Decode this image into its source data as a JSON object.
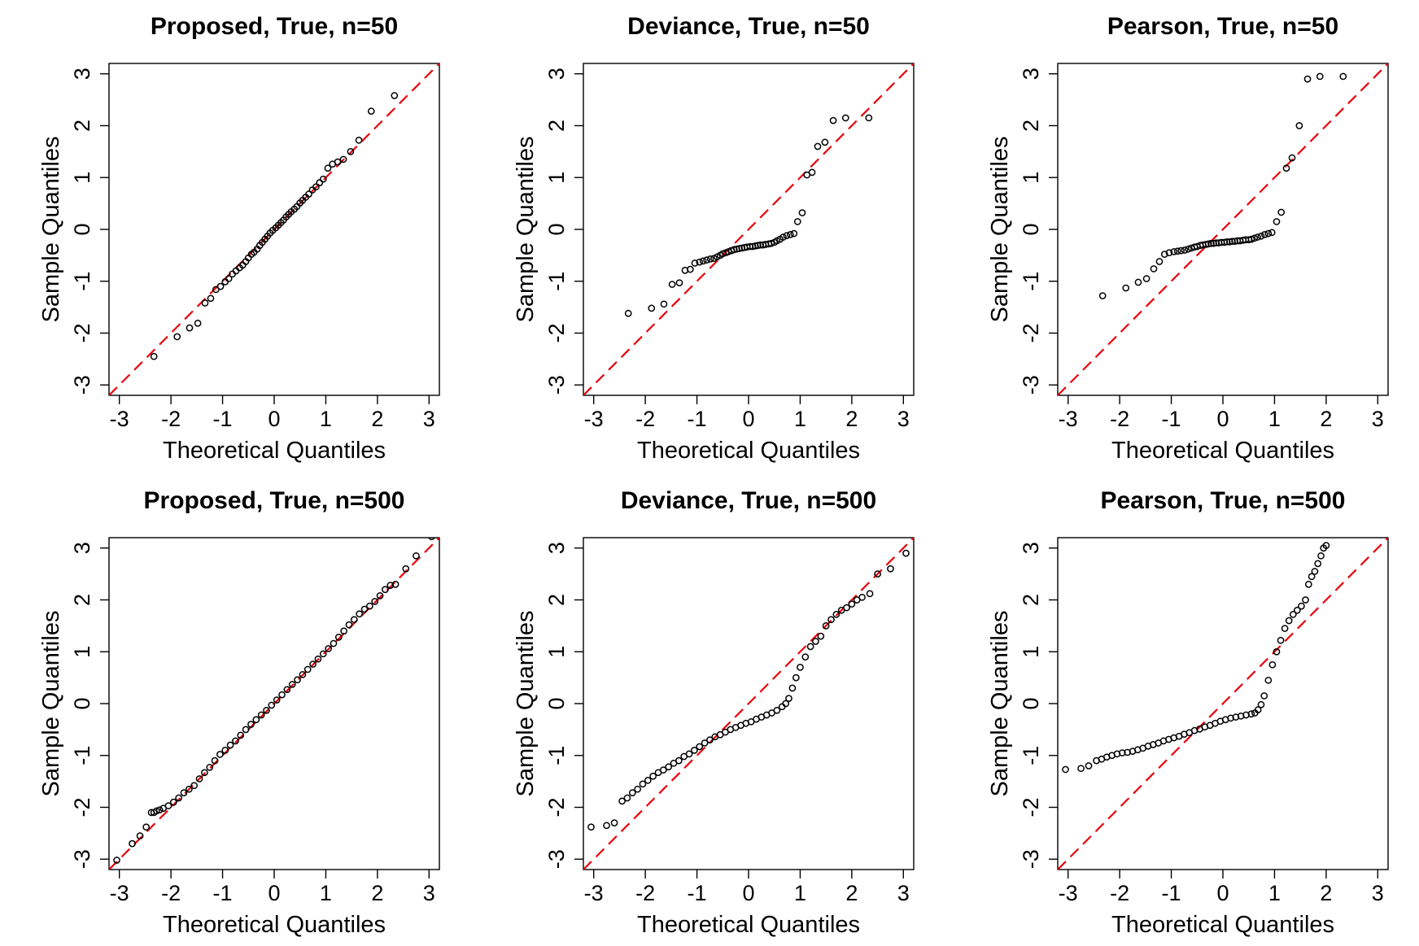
{
  "chart_data": [
    {
      "type": "scatter",
      "title": "Proposed, True, n=50",
      "xlabel": "Theoretical Quantiles",
      "ylabel": "Sample Quantiles",
      "xlim": [
        -3.2,
        3.2
      ],
      "ylim": [
        -3.2,
        3.2
      ],
      "xticks": [
        "-3",
        "-2",
        "-1",
        "0",
        "1",
        "2",
        "3"
      ],
      "yticks": [
        "-3",
        "-2",
        "-1",
        "0",
        "1",
        "2",
        "3"
      ],
      "reference_line": {
        "slope": 1,
        "intercept": 0,
        "color": "#e8000b",
        "style": "dashed"
      },
      "x": [
        -2.33,
        -1.88,
        -1.64,
        -1.48,
        -1.34,
        -1.23,
        -1.13,
        -1.04,
        -0.95,
        -0.88,
        -0.81,
        -0.74,
        -0.67,
        -0.61,
        -0.55,
        -0.5,
        -0.44,
        -0.39,
        -0.33,
        -0.28,
        -0.23,
        -0.18,
        -0.13,
        -0.08,
        -0.03,
        0.03,
        0.08,
        0.13,
        0.18,
        0.23,
        0.28,
        0.33,
        0.39,
        0.44,
        0.5,
        0.55,
        0.61,
        0.67,
        0.74,
        0.81,
        0.88,
        0.95,
        1.04,
        1.13,
        1.23,
        1.34,
        1.48,
        1.64,
        1.88,
        2.33
      ],
      "y": [
        -2.45,
        -2.07,
        -1.9,
        -1.81,
        -1.42,
        -1.33,
        -1.16,
        -1.1,
        -1.01,
        -0.95,
        -0.86,
        -0.8,
        -0.74,
        -0.69,
        -0.62,
        -0.55,
        -0.48,
        -0.44,
        -0.38,
        -0.31,
        -0.25,
        -0.19,
        -0.13,
        -0.07,
        -0.02,
        0.03,
        0.08,
        0.13,
        0.18,
        0.24,
        0.29,
        0.34,
        0.39,
        0.44,
        0.51,
        0.56,
        0.62,
        0.68,
        0.76,
        0.82,
        0.9,
        0.97,
        1.18,
        1.26,
        1.3,
        1.35,
        1.5,
        1.72,
        2.28,
        2.58
      ]
    },
    {
      "type": "scatter",
      "title": "Deviance, True, n=50",
      "xlabel": "Theoretical Quantiles",
      "ylabel": "Sample Quantiles",
      "xlim": [
        -3.2,
        3.2
      ],
      "ylim": [
        -3.2,
        3.2
      ],
      "xticks": [
        "-3",
        "-2",
        "-1",
        "0",
        "1",
        "2",
        "3"
      ],
      "yticks": [
        "-3",
        "-2",
        "-1",
        "0",
        "1",
        "2",
        "3"
      ],
      "reference_line": {
        "slope": 1,
        "intercept": 0,
        "color": "#e8000b",
        "style": "dashed"
      },
      "x": [
        -2.33,
        -1.88,
        -1.64,
        -1.48,
        -1.34,
        -1.23,
        -1.13,
        -1.04,
        -0.95,
        -0.88,
        -0.81,
        -0.74,
        -0.67,
        -0.61,
        -0.55,
        -0.5,
        -0.44,
        -0.39,
        -0.33,
        -0.28,
        -0.23,
        -0.18,
        -0.13,
        -0.08,
        -0.03,
        0.03,
        0.08,
        0.13,
        0.18,
        0.23,
        0.28,
        0.33,
        0.39,
        0.44,
        0.5,
        0.55,
        0.61,
        0.67,
        0.74,
        0.81,
        0.88,
        0.95,
        1.04,
        1.13,
        1.23,
        1.34,
        1.48,
        1.64,
        1.88,
        2.33
      ],
      "y": [
        -1.62,
        -1.52,
        -1.44,
        -1.06,
        -1.03,
        -0.79,
        -0.77,
        -0.65,
        -0.63,
        -0.61,
        -0.59,
        -0.57,
        -0.56,
        -0.53,
        -0.5,
        -0.47,
        -0.45,
        -0.43,
        -0.41,
        -0.39,
        -0.38,
        -0.37,
        -0.36,
        -0.35,
        -0.34,
        -0.33,
        -0.33,
        -0.32,
        -0.31,
        -0.3,
        -0.3,
        -0.29,
        -0.28,
        -0.27,
        -0.25,
        -0.22,
        -0.19,
        -0.15,
        -0.12,
        -0.1,
        -0.08,
        0.15,
        0.32,
        1.05,
        1.1,
        1.6,
        1.68,
        2.1,
        2.15,
        2.15
      ]
    },
    {
      "type": "scatter",
      "title": "Pearson, True, n=50",
      "xlabel": "Theoretical Quantiles",
      "ylabel": "Sample Quantiles",
      "xlim": [
        -3.2,
        3.2
      ],
      "ylim": [
        -3.2,
        3.2
      ],
      "xticks": [
        "-3",
        "-2",
        "-1",
        "0",
        "1",
        "2",
        "3"
      ],
      "yticks": [
        "-3",
        "-2",
        "-1",
        "0",
        "1",
        "2",
        "3"
      ],
      "reference_line": {
        "slope": 1,
        "intercept": 0,
        "color": "#e8000b",
        "style": "dashed"
      },
      "x": [
        -2.33,
        -1.88,
        -1.64,
        -1.48,
        -1.34,
        -1.23,
        -1.13,
        -1.04,
        -0.95,
        -0.88,
        -0.81,
        -0.74,
        -0.67,
        -0.61,
        -0.55,
        -0.5,
        -0.44,
        -0.39,
        -0.33,
        -0.28,
        -0.23,
        -0.18,
        -0.13,
        -0.08,
        -0.03,
        0.03,
        0.08,
        0.13,
        0.18,
        0.23,
        0.28,
        0.33,
        0.39,
        0.44,
        0.5,
        0.55,
        0.61,
        0.67,
        0.74,
        0.81,
        0.88,
        0.95,
        1.04,
        1.13,
        1.23,
        1.34,
        1.48,
        1.64,
        1.88,
        2.33
      ],
      "y": [
        -1.28,
        -1.13,
        -1.02,
        -0.95,
        -0.76,
        -0.62,
        -0.48,
        -0.45,
        -0.43,
        -0.42,
        -0.41,
        -0.4,
        -0.38,
        -0.36,
        -0.34,
        -0.33,
        -0.31,
        -0.3,
        -0.29,
        -0.28,
        -0.27,
        -0.27,
        -0.26,
        -0.26,
        -0.25,
        -0.25,
        -0.24,
        -0.24,
        -0.23,
        -0.23,
        -0.22,
        -0.22,
        -0.21,
        -0.2,
        -0.2,
        -0.19,
        -0.17,
        -0.15,
        -0.13,
        -0.1,
        -0.08,
        -0.06,
        0.15,
        0.33,
        1.18,
        1.38,
        2.0,
        2.9,
        2.95,
        2.95
      ]
    },
    {
      "type": "scatter",
      "title": "Proposed, True, n=500",
      "xlabel": "Theoretical Quantiles",
      "ylabel": "Sample Quantiles",
      "xlim": [
        -3.2,
        3.2
      ],
      "ylim": [
        -3.2,
        3.2
      ],
      "xticks": [
        "-3",
        "-2",
        "-1",
        "0",
        "1",
        "2",
        "3"
      ],
      "yticks": [
        "-3",
        "-2",
        "-1",
        "0",
        "1",
        "2",
        "3"
      ],
      "reference_line": {
        "slope": 1,
        "intercept": 0,
        "color": "#e8000b",
        "style": "dashed"
      },
      "x": [
        -3.05,
        -2.75,
        -2.6,
        -2.48,
        -2.38,
        -2.33,
        -2.28,
        -2.22,
        -2.15,
        -2.05,
        -1.95,
        -1.85,
        -1.75,
        -1.65,
        -1.55,
        -1.45,
        -1.35,
        -1.25,
        -1.15,
        -1.05,
        -0.95,
        -0.85,
        -0.75,
        -0.65,
        -0.55,
        -0.45,
        -0.35,
        -0.25,
        -0.15,
        -0.05,
        0.05,
        0.15,
        0.25,
        0.35,
        0.45,
        0.55,
        0.65,
        0.75,
        0.85,
        0.95,
        1.05,
        1.15,
        1.25,
        1.35,
        1.45,
        1.55,
        1.65,
        1.75,
        1.85,
        1.95,
        2.05,
        2.15,
        2.25,
        2.35,
        2.55,
        2.75,
        3.05
      ],
      "y": [
        -3.02,
        -2.7,
        -2.55,
        -2.38,
        -2.1,
        -2.1,
        -2.07,
        -2.05,
        -2.02,
        -1.97,
        -1.9,
        -1.82,
        -1.72,
        -1.65,
        -1.58,
        -1.45,
        -1.33,
        -1.23,
        -1.1,
        -0.98,
        -0.9,
        -0.8,
        -0.72,
        -0.61,
        -0.5,
        -0.4,
        -0.31,
        -0.22,
        -0.13,
        -0.03,
        0.07,
        0.17,
        0.27,
        0.37,
        0.46,
        0.56,
        0.66,
        0.76,
        0.86,
        0.96,
        1.06,
        1.16,
        1.28,
        1.4,
        1.52,
        1.62,
        1.73,
        1.82,
        1.88,
        1.97,
        2.08,
        2.2,
        2.28,
        2.3,
        2.6,
        2.85,
        3.22
      ]
    },
    {
      "type": "scatter",
      "title": "Deviance, True, n=500",
      "xlabel": "Theoretical Quantiles",
      "ylabel": "Sample Quantiles",
      "xlim": [
        -3.2,
        3.2
      ],
      "ylim": [
        -3.2,
        3.2
      ],
      "xticks": [
        "-3",
        "-2",
        "-1",
        "0",
        "1",
        "2",
        "3"
      ],
      "yticks": [
        "-3",
        "-2",
        "-1",
        "0",
        "1",
        "2",
        "3"
      ],
      "reference_line": {
        "slope": 1,
        "intercept": 0,
        "color": "#e8000b",
        "style": "dashed"
      },
      "x": [
        -3.05,
        -2.75,
        -2.6,
        -2.45,
        -2.35,
        -2.25,
        -2.15,
        -2.05,
        -1.95,
        -1.85,
        -1.75,
        -1.65,
        -1.55,
        -1.45,
        -1.35,
        -1.25,
        -1.15,
        -1.05,
        -0.95,
        -0.85,
        -0.75,
        -0.65,
        -0.55,
        -0.45,
        -0.35,
        -0.25,
        -0.15,
        -0.05,
        0.05,
        0.15,
        0.25,
        0.35,
        0.45,
        0.55,
        0.65,
        0.72,
        0.78,
        0.85,
        0.92,
        1.0,
        1.1,
        1.2,
        1.3,
        1.4,
        1.5,
        1.6,
        1.7,
        1.8,
        1.9,
        2.0,
        2.1,
        2.2,
        2.35,
        2.5,
        2.75,
        3.05
      ],
      "y": [
        -2.38,
        -2.35,
        -2.3,
        -1.88,
        -1.82,
        -1.72,
        -1.65,
        -1.55,
        -1.48,
        -1.4,
        -1.33,
        -1.28,
        -1.22,
        -1.15,
        -1.1,
        -1.02,
        -0.97,
        -0.9,
        -0.83,
        -0.76,
        -0.7,
        -0.64,
        -0.6,
        -0.55,
        -0.5,
        -0.46,
        -0.42,
        -0.38,
        -0.35,
        -0.3,
        -0.26,
        -0.22,
        -0.18,
        -0.13,
        -0.06,
        0.0,
        0.1,
        0.3,
        0.5,
        0.7,
        0.9,
        1.1,
        1.2,
        1.3,
        1.5,
        1.62,
        1.72,
        1.8,
        1.85,
        1.92,
        2.0,
        2.05,
        2.12,
        2.5,
        2.6,
        2.9
      ]
    },
    {
      "type": "scatter",
      "title": "Pearson, True, n=500",
      "xlabel": "Theoretical Quantiles",
      "ylabel": "Sample Quantiles",
      "xlim": [
        -3.2,
        3.2
      ],
      "ylim": [
        -3.2,
        3.2
      ],
      "xticks": [
        "-3",
        "-2",
        "-1",
        "0",
        "1",
        "2",
        "3"
      ],
      "yticks": [
        "-3",
        "-2",
        "-1",
        "0",
        "1",
        "2",
        "3"
      ],
      "reference_line": {
        "slope": 1,
        "intercept": 0,
        "color": "#e8000b",
        "style": "dashed"
      },
      "x": [
        -3.05,
        -2.75,
        -2.6,
        -2.45,
        -2.35,
        -2.25,
        -2.15,
        -2.05,
        -1.95,
        -1.85,
        -1.75,
        -1.65,
        -1.55,
        -1.45,
        -1.35,
        -1.25,
        -1.15,
        -1.05,
        -0.95,
        -0.85,
        -0.75,
        -0.65,
        -0.55,
        -0.45,
        -0.35,
        -0.25,
        -0.15,
        -0.05,
        0.05,
        0.15,
        0.25,
        0.35,
        0.45,
        0.55,
        0.62,
        0.68,
        0.74,
        0.8,
        0.88,
        0.96,
        1.04,
        1.12,
        1.2,
        1.28,
        1.36,
        1.44,
        1.52,
        1.6,
        1.66,
        1.72,
        1.78,
        1.84,
        1.9,
        1.95,
        2.0
      ],
      "y": [
        -1.27,
        -1.25,
        -1.2,
        -1.1,
        -1.07,
        -1.03,
        -1.0,
        -0.97,
        -0.95,
        -0.94,
        -0.92,
        -0.89,
        -0.86,
        -0.82,
        -0.79,
        -0.76,
        -0.72,
        -0.69,
        -0.66,
        -0.63,
        -0.59,
        -0.56,
        -0.52,
        -0.49,
        -0.45,
        -0.42,
        -0.38,
        -0.34,
        -0.31,
        -0.28,
        -0.26,
        -0.24,
        -0.22,
        -0.2,
        -0.18,
        -0.12,
        -0.02,
        0.15,
        0.45,
        0.75,
        1.0,
        1.22,
        1.45,
        1.6,
        1.72,
        1.8,
        1.88,
        2.0,
        2.3,
        2.45,
        2.55,
        2.7,
        2.85,
        3.0,
        3.05
      ]
    }
  ]
}
